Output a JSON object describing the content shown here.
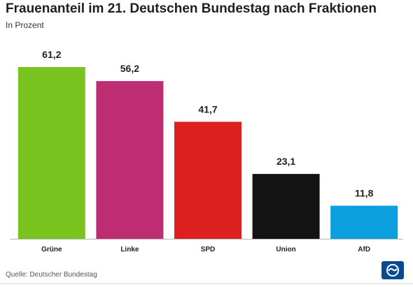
{
  "header": {
    "title": "Frauenanteil im 21. Deutschen Bundestag nach Fraktionen",
    "subtitle": "In Prozent"
  },
  "footer": {
    "source": "Quelle: Deutscher Bundestag",
    "logo_icon": "ard-tagesschau-logo-icon"
  },
  "colors": {
    "Grüne": "#7ac41f",
    "Linke": "#be2d74",
    "SPD": "#dc2020",
    "Union": "#131313",
    "AfD": "#0c9fe0",
    "baseline": "#b9b9b9",
    "logo_blue": "#0a4a8f"
  },
  "chart_data": {
    "type": "bar",
    "title": "Frauenanteil im 21. Deutschen Bundestag nach Fraktionen",
    "subtitle": "In Prozent",
    "categories": [
      "Grüne",
      "Linke",
      "SPD",
      "Union",
      "AfD"
    ],
    "values": [
      61.2,
      56.2,
      41.7,
      23.1,
      11.8
    ],
    "value_labels": [
      "61,2",
      "56,2",
      "41,7",
      "23,1",
      "11,8"
    ],
    "ylim": [
      0,
      61.2
    ],
    "grid": false,
    "legend": "none"
  }
}
